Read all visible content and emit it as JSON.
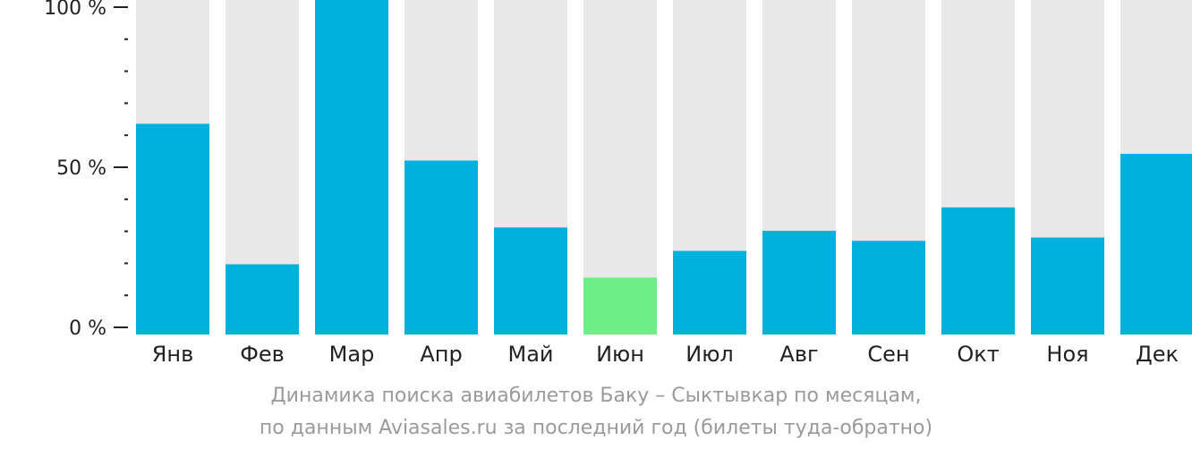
{
  "chart_data": {
    "type": "bar",
    "categories": [
      "Янв",
      "Фев",
      "Мар",
      "Апр",
      "Май",
      "Июн",
      "Июл",
      "Авг",
      "Сен",
      "Окт",
      "Ноя",
      "Дек"
    ],
    "values": [
      63,
      21,
      100,
      52,
      32,
      17,
      25,
      31,
      28,
      38,
      29,
      54
    ],
    "ylim": [
      0,
      100
    ],
    "yticks": [
      {
        "value": 0,
        "label": "0 %"
      },
      {
        "value": 50,
        "label": "50 %"
      },
      {
        "value": 100,
        "label": "100 %"
      }
    ],
    "minor_tick_step": 10,
    "highlight_index": 5,
    "colors": {
      "bar": "#00b0dd",
      "highlight": "#6cef86",
      "background_bar": "#e8e8e8",
      "axis": "#222222"
    }
  },
  "caption": {
    "line1": "Динамика поиска авиабилетов Баку – Сыктывкар по месяцам,",
    "line2": "по данным Aviasales.ru за последний год (билеты туда-обратно)"
  }
}
